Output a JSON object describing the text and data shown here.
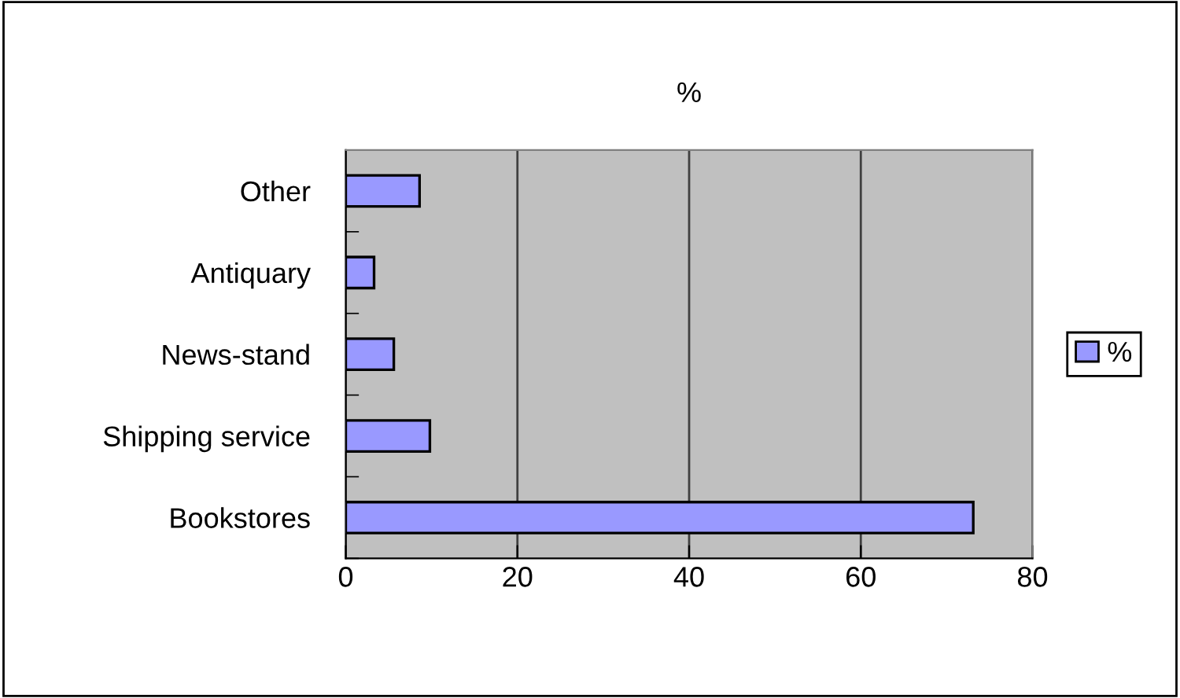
{
  "chart_data": {
    "type": "bar",
    "orientation": "horizontal",
    "title": "%",
    "categories": [
      "Other",
      "Antiquary",
      "News-stand",
      "Shipping service",
      "Bookstores"
    ],
    "series": [
      {
        "name": "%",
        "color": "#9999ff",
        "values": [
          8.6,
          3.3,
          5.6,
          9.8,
          73.1
        ]
      }
    ],
    "xlim": [
      0,
      80
    ],
    "xticks": [
      0,
      20,
      40,
      60,
      80
    ],
    "grid": "x",
    "legend": "right"
  }
}
